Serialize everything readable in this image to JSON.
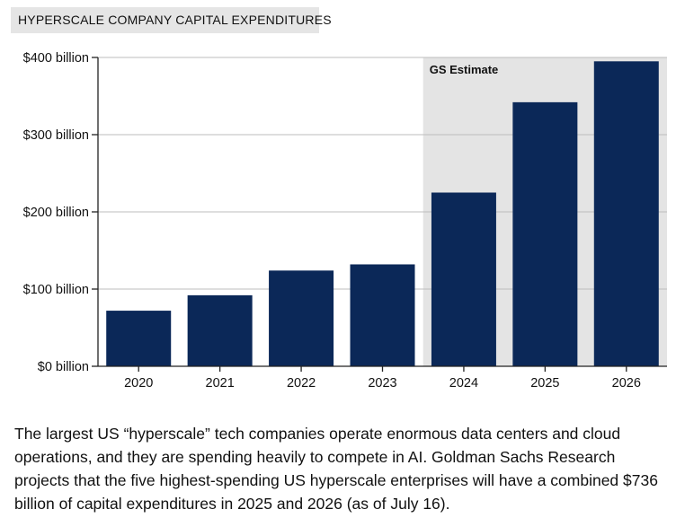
{
  "chart_data": {
    "type": "bar",
    "title": "HYPERSCALE COMPANY CAPITAL EXPENDITURES",
    "categories": [
      "2020",
      "2021",
      "2022",
      "2023",
      "2024",
      "2025",
      "2026"
    ],
    "values": [
      72,
      92,
      124,
      132,
      225,
      342,
      395
    ],
    "unit": "billion USD",
    "ylim": [
      0,
      400
    ],
    "yticks": [
      0,
      100,
      200,
      300,
      400
    ],
    "ytick_labels": [
      "$0 billion",
      "$100 billion",
      "$200 billion",
      "$300 billion",
      "$400 billion"
    ],
    "xlabel": "",
    "ylabel": "",
    "grid": true,
    "shaded_region": {
      "label": "GS Estimate",
      "categories": [
        "2024",
        "2025",
        "2026"
      ]
    },
    "colors": {
      "bar": "#0b2858",
      "shade": "#e4e4e4",
      "grid": "#bdbdbd",
      "axis": "#222222"
    }
  },
  "caption": "The largest US “hyperscale” tech companies operate enormous data centers and cloud operations, and they are spending heavily to compete in AI. Goldman Sachs Research projects that the five highest-spending US hyperscale enterprises will have a combined $736 billion of capital expenditures in 2025 and 2026 (as of July 16)."
}
